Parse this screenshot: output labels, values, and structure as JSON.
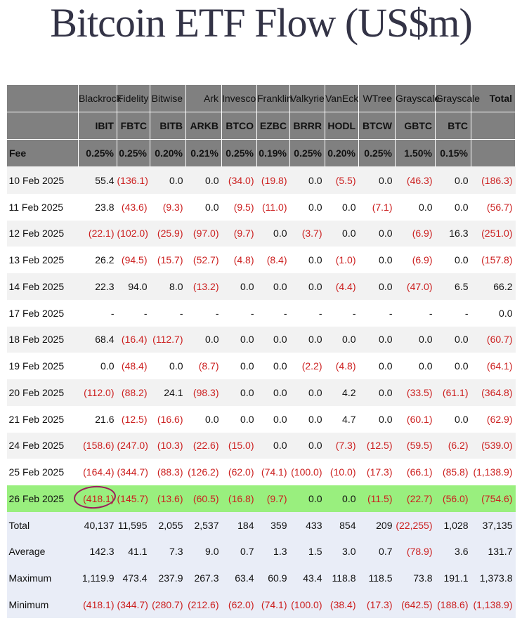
{
  "title": "Bitcoin ETF Flow (US$m)",
  "colors": {
    "header_bg": "#808080",
    "negative": "#cc2020",
    "highlight_row": "#99ef7e",
    "summary_bg": "#e9edf7",
    "annotation_circle": "#9b1e5a"
  },
  "header": {
    "issuers": [
      "Blackrock",
      "Fidelity",
      "Bitwise",
      "Ark",
      "Invesco",
      "Franklin",
      "Valkyrie",
      "VanEck",
      "WTree",
      "Grayscale",
      "Grayscale"
    ],
    "tickers": [
      "IBIT",
      "FBTC",
      "BITB",
      "ARKB",
      "BTCO",
      "EZBC",
      "BRRR",
      "HODL",
      "BTCW",
      "GBTC",
      "BTC"
    ],
    "fee_label": "Fee",
    "fees": [
      "0.25%",
      "0.25%",
      "0.20%",
      "0.21%",
      "0.25%",
      "0.19%",
      "0.25%",
      "0.20%",
      "0.25%",
      "1.50%",
      "0.15%"
    ],
    "total_label": "Total"
  },
  "rows": [
    {
      "date": "10 Feb 2025",
      "values": [
        "55.4",
        "(136.1)",
        "0.0",
        "0.0",
        "(34.0)",
        "(19.8)",
        "0.0",
        "(5.5)",
        "0.0",
        "(46.3)",
        "0.0"
      ],
      "total": "(186.3)"
    },
    {
      "date": "11 Feb 2025",
      "values": [
        "23.8",
        "(43.6)",
        "(9.3)",
        "0.0",
        "(9.5)",
        "(11.0)",
        "0.0",
        "0.0",
        "(7.1)",
        "0.0",
        "0.0"
      ],
      "total": "(56.7)"
    },
    {
      "date": "12 Feb 2025",
      "values": [
        "(22.1)",
        "(102.0)",
        "(25.9)",
        "(97.0)",
        "(9.7)",
        "0.0",
        "(3.7)",
        "0.0",
        "0.0",
        "(6.9)",
        "16.3"
      ],
      "total": "(251.0)"
    },
    {
      "date": "13 Feb 2025",
      "values": [
        "26.2",
        "(94.5)",
        "(15.7)",
        "(52.7)",
        "(4.8)",
        "(8.4)",
        "0.0",
        "(1.0)",
        "0.0",
        "(6.9)",
        "0.0"
      ],
      "total": "(157.8)"
    },
    {
      "date": "14 Feb 2025",
      "values": [
        "22.3",
        "94.0",
        "8.0",
        "(13.2)",
        "0.0",
        "0.0",
        "0.0",
        "(4.4)",
        "0.0",
        "(47.0)",
        "6.5"
      ],
      "total": "66.2"
    },
    {
      "date": "17 Feb 2025",
      "values": [
        "-",
        "-",
        "-",
        "-",
        "-",
        "-",
        "-",
        "-",
        "-",
        "-",
        "-"
      ],
      "total": "0.0"
    },
    {
      "date": "18 Feb 2025",
      "values": [
        "68.4",
        "(16.4)",
        "(112.7)",
        "0.0",
        "0.0",
        "0.0",
        "0.0",
        "0.0",
        "0.0",
        "0.0",
        "0.0"
      ],
      "total": "(60.7)"
    },
    {
      "date": "19 Feb 2025",
      "values": [
        "0.0",
        "(48.4)",
        "0.0",
        "(8.7)",
        "0.0",
        "0.0",
        "(2.2)",
        "(4.8)",
        "0.0",
        "0.0",
        "0.0"
      ],
      "total": "(64.1)"
    },
    {
      "date": "20 Feb 2025",
      "values": [
        "(112.0)",
        "(88.2)",
        "24.1",
        "(98.3)",
        "0.0",
        "0.0",
        "0.0",
        "4.2",
        "0.0",
        "(33.5)",
        "(61.1)"
      ],
      "total": "(364.8)"
    },
    {
      "date": "21 Feb 2025",
      "values": [
        "21.6",
        "(12.5)",
        "(16.6)",
        "0.0",
        "0.0",
        "0.0",
        "0.0",
        "4.7",
        "0.0",
        "(60.1)",
        "0.0"
      ],
      "total": "(62.9)"
    },
    {
      "date": "24 Feb 2025",
      "values": [
        "(158.6)",
        "(247.0)",
        "(10.3)",
        "(22.6)",
        "(15.0)",
        "0.0",
        "0.0",
        "(7.3)",
        "(12.5)",
        "(59.5)",
        "(6.2)"
      ],
      "total": "(539.0)"
    },
    {
      "date": "25 Feb 2025",
      "values": [
        "(164.4)",
        "(344.7)",
        "(88.3)",
        "(126.2)",
        "(62.0)",
        "(74.1)",
        "(100.0)",
        "(10.0)",
        "(17.3)",
        "(66.1)",
        "(85.8)"
      ],
      "total": "(1,138.9)"
    },
    {
      "date": "26 Feb 2025",
      "values": [
        "(418.1)",
        "(145.7)",
        "(13.6)",
        "(60.5)",
        "(16.8)",
        "(9.7)",
        "0.0",
        "0.0",
        "(11.5)",
        "(22.7)",
        "(56.0)"
      ],
      "total": "(754.6)",
      "highlight": true
    }
  ],
  "summary": [
    {
      "label": "Total",
      "values": [
        "40,137",
        "11,595",
        "2,055",
        "2,537",
        "184",
        "359",
        "433",
        "854",
        "209",
        "(22,255)",
        "1,028"
      ],
      "total": "37,135"
    },
    {
      "label": "Average",
      "values": [
        "142.3",
        "41.1",
        "7.3",
        "9.0",
        "0.7",
        "1.3",
        "1.5",
        "3.0",
        "0.7",
        "(78.9)",
        "3.6"
      ],
      "total": "131.7"
    },
    {
      "label": "Maximum",
      "values": [
        "1,119.9",
        "473.4",
        "237.9",
        "267.3",
        "63.4",
        "60.9",
        "43.4",
        "118.8",
        "118.5",
        "73.8",
        "191.1"
      ],
      "total": "1,373.8"
    },
    {
      "label": "Minimum",
      "values": [
        "(418.1)",
        "(344.7)",
        "(280.7)",
        "(212.6)",
        "(62.0)",
        "(74.1)",
        "(100.0)",
        "(38.4)",
        "(17.3)",
        "(642.5)",
        "(188.6)"
      ],
      "total": "(1,138.9)"
    }
  ]
}
